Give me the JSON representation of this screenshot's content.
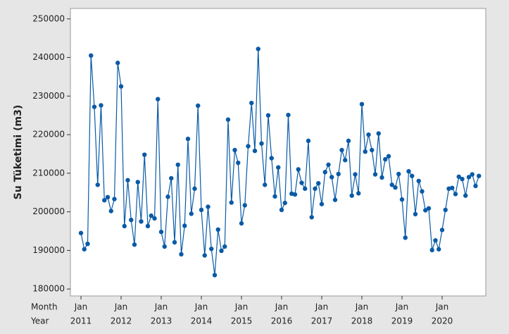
{
  "chart_data": {
    "type": "line",
    "ylabel": "Su Tüketimi (m3)",
    "x_row_titles": [
      "Month",
      "Year"
    ],
    "categories": [
      "Jan",
      null,
      null,
      null,
      null,
      null,
      null,
      null,
      null,
      null,
      null,
      null,
      "Jan",
      null,
      null,
      null,
      null,
      null,
      null,
      null,
      null,
      null,
      null,
      null,
      "Jan",
      null,
      null,
      null,
      null,
      null,
      null,
      null,
      null,
      null,
      null,
      null,
      "Jan",
      null,
      null,
      null,
      null,
      null,
      null,
      null,
      null,
      null,
      null,
      null,
      "Jan",
      null,
      null,
      null,
      null,
      null,
      null,
      null,
      null,
      null,
      null,
      null,
      "Jan",
      null,
      null,
      null,
      null,
      null,
      null,
      null,
      null,
      null,
      null,
      null,
      "Jan",
      null,
      null,
      null,
      null,
      null,
      null,
      null,
      null,
      null,
      null,
      null,
      "Jan",
      null,
      null,
      null,
      null,
      null,
      null,
      null,
      null,
      null,
      null,
      null,
      "Jan",
      null,
      null,
      null,
      null,
      null,
      null,
      null,
      null,
      null,
      null,
      null,
      "Jan",
      null,
      null,
      null,
      null,
      null,
      null,
      null,
      null,
      null,
      null,
      null
    ],
    "year_categories": [
      "2011",
      null,
      null,
      null,
      null,
      null,
      null,
      null,
      null,
      null,
      null,
      null,
      "2012",
      null,
      null,
      null,
      null,
      null,
      null,
      null,
      null,
      null,
      null,
      null,
      "2013",
      null,
      null,
      null,
      null,
      null,
      null,
      null,
      null,
      null,
      null,
      null,
      "2014",
      null,
      null,
      null,
      null,
      null,
      null,
      null,
      null,
      null,
      null,
      null,
      "2015",
      null,
      null,
      null,
      null,
      null,
      null,
      null,
      null,
      null,
      null,
      null,
      "2016",
      null,
      null,
      null,
      null,
      null,
      null,
      null,
      null,
      null,
      null,
      null,
      "2017",
      null,
      null,
      null,
      null,
      null,
      null,
      null,
      null,
      null,
      null,
      null,
      "2018",
      null,
      null,
      null,
      null,
      null,
      null,
      null,
      null,
      null,
      null,
      null,
      "2019",
      null,
      null,
      null,
      null,
      null,
      null,
      null,
      null,
      null,
      null,
      null,
      "2020",
      null,
      null,
      null,
      null,
      null,
      null,
      null,
      null,
      null,
      null,
      null
    ],
    "color": "#0a5aa6",
    "values": [
      194500,
      190300,
      191700,
      240500,
      227200,
      207000,
      227600,
      203000,
      203800,
      200200,
      203300,
      238600,
      232500,
      196300,
      208200,
      197900,
      191500,
      207700,
      197500,
      214800,
      196300,
      199000,
      198300,
      229200,
      194800,
      191000,
      203900,
      208700,
      192100,
      212200,
      189000,
      196400,
      218900,
      199500,
      206000,
      227500,
      200500,
      188700,
      201300,
      190400,
      183600,
      195400,
      189900,
      191000,
      223900,
      202400,
      216000,
      212700,
      197000,
      201700,
      217000,
      228200,
      215800,
      242200,
      217700,
      207000,
      225000,
      213900,
      204000,
      211500,
      200500,
      202300,
      225100,
      204700,
      204500,
      211000,
      207500,
      206000,
      218400,
      198600,
      206000,
      207400,
      202000,
      210300,
      212200,
      209000,
      203100,
      209800,
      216000,
      213400,
      218400,
      204200,
      209700,
      204800,
      227900,
      215600,
      220000,
      216000,
      209700,
      220300,
      208900,
      213600,
      214400,
      207000,
      206300,
      209800,
      203200,
      193300,
      210500,
      209300,
      199400,
      208000,
      205300,
      200400,
      200900,
      190100,
      192600,
      190300,
      195300,
      200500,
      206000,
      206200,
      204600,
      209100,
      208500,
      204200,
      209000,
      209700,
      206700,
      209300
    ],
    "ylim": [
      178200,
      252700
    ],
    "yticks": [
      180000,
      190000,
      200000,
      210000,
      220000,
      230000,
      240000,
      250000
    ]
  }
}
